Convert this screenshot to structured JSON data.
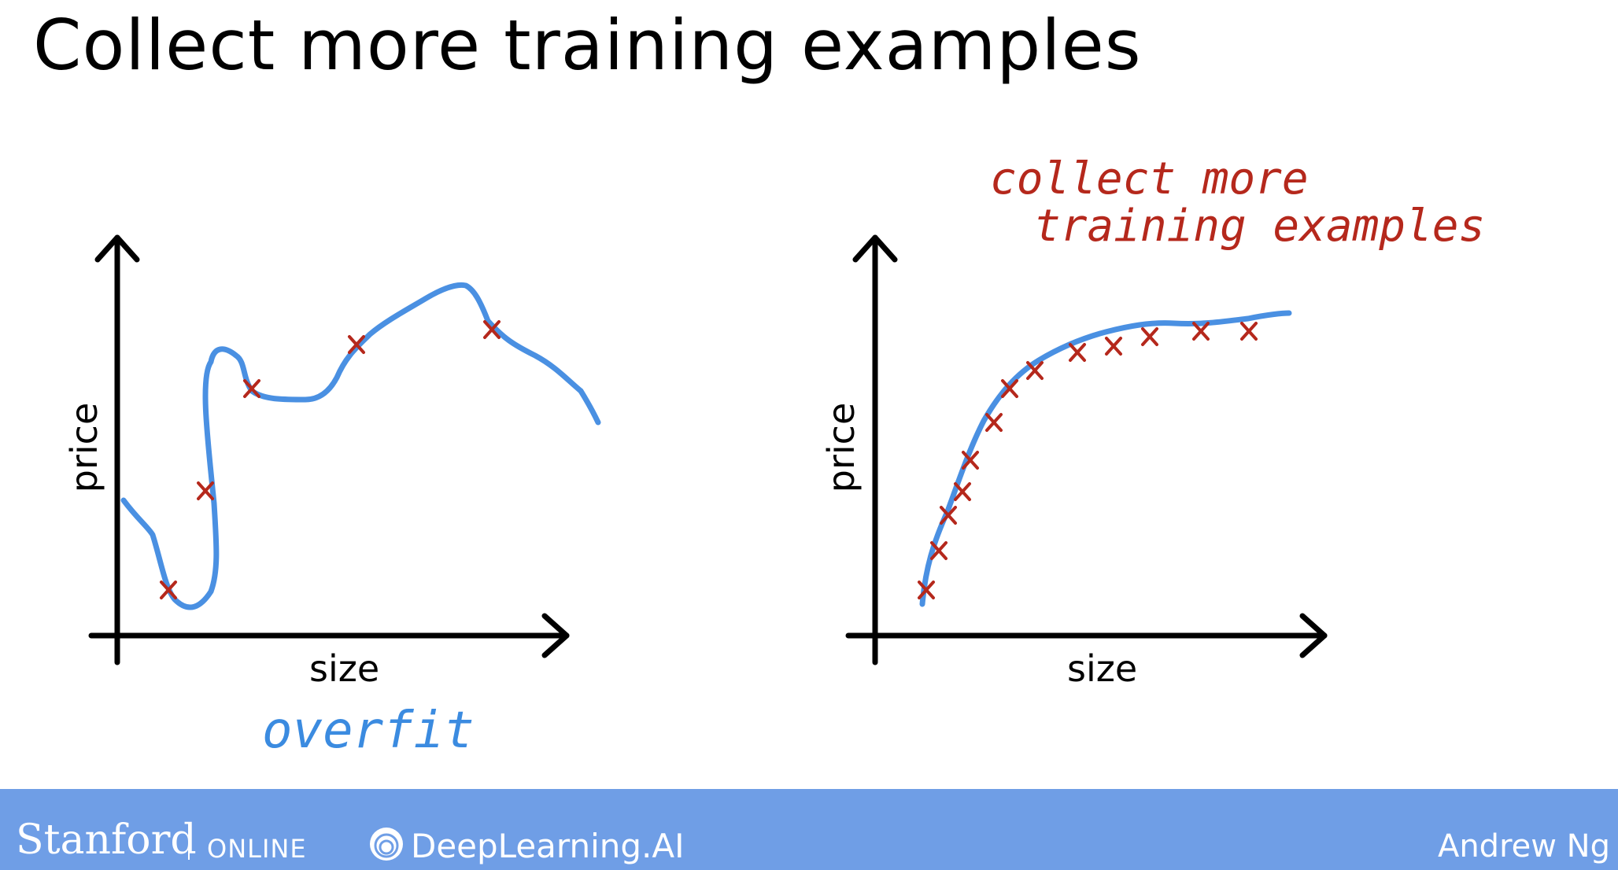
{
  "slide": {
    "title": "Collect more training examples"
  },
  "left_plot": {
    "xlabel": "size",
    "ylabel": "price",
    "annotation": "overfit"
  },
  "right_plot": {
    "xlabel": "size",
    "ylabel": "price",
    "annotation_line1": "collect more",
    "annotation_line2": "training examples"
  },
  "colors": {
    "curve": "#4a90e2",
    "marker": "#b5281c",
    "annotation_blue": "#3b8be0",
    "annotation_red": "#b5281c",
    "footer_bg": "#6f9ee6"
  },
  "footer": {
    "stanford": "Stanford",
    "online": "ONLINE",
    "deeplearning": "DeepLearning.AI",
    "author": "Andrew Ng"
  }
}
